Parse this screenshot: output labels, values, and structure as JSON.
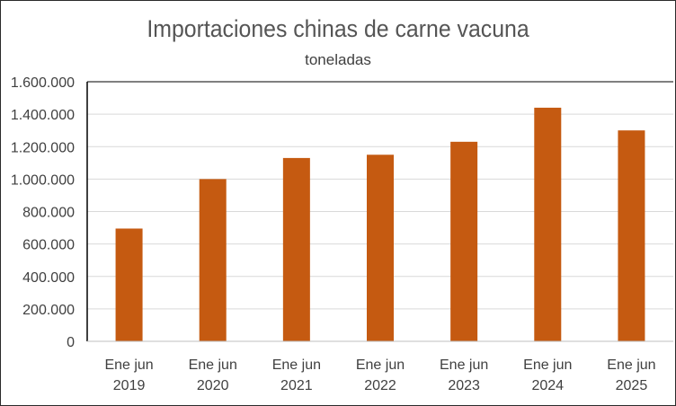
{
  "chart_data": {
    "type": "bar",
    "title": "Importaciones chinas de carne vacuna",
    "subtitle": "toneladas",
    "xlabel": "",
    "ylabel": "",
    "categories": [
      [
        "Ene jun",
        "2019"
      ],
      [
        "Ene jun",
        "2020"
      ],
      [
        "Ene jun",
        "2021"
      ],
      [
        "Ene jun",
        "2022"
      ],
      [
        "Ene jun",
        "2023"
      ],
      [
        "Ene jun",
        "2024"
      ],
      [
        "Ene jun",
        "2025"
      ]
    ],
    "values": [
      695000,
      1000000,
      1130000,
      1150000,
      1230000,
      1440000,
      1300000
    ],
    "ylim": [
      0,
      1600000
    ],
    "yticks": [
      0,
      200000,
      400000,
      600000,
      800000,
      1000000,
      1200000,
      1400000,
      1600000
    ],
    "ytick_labels": [
      "0",
      "200.000",
      "400.000",
      "600.000",
      "800.000",
      "1.000.000",
      "1.200.000",
      "1.400.000",
      "1.600.000"
    ],
    "grid": true,
    "bar_color": "#c55a11",
    "grid_color": "#d9d9d9"
  }
}
